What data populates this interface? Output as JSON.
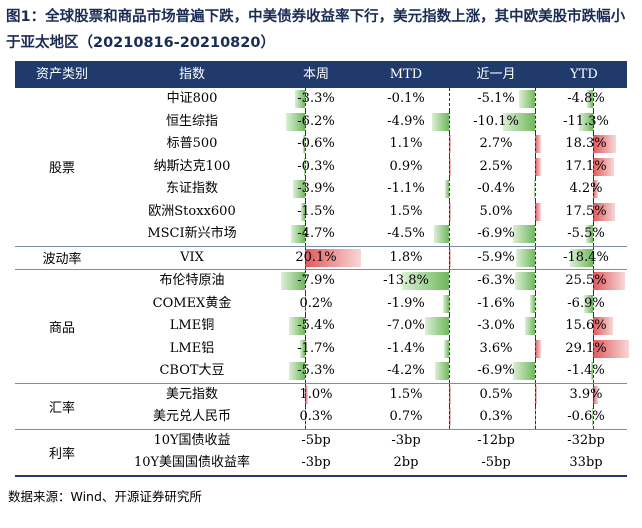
{
  "title": "图1：全球股票和商品市场普遍下跌，中美债券收益率下行，美元指数上涨，其中欧美股市跌幅小于亚太地区（20210816-20210820）",
  "headers": [
    "资产类别",
    "指数",
    "本周",
    "MTD",
    "近一月",
    "YTD"
  ],
  "groups": [
    {
      "label": "股票",
      "rows": [
        {
          "name": "中证800",
          "values": [
            -3.3,
            -0.1,
            -5.1,
            -4.8
          ]
        },
        {
          "name": "恒生综指",
          "values": [
            -6.2,
            -4.9,
            -10.1,
            -11.3
          ]
        },
        {
          "name": "标普500",
          "values": [
            -0.6,
            1.1,
            2.7,
            18.3
          ]
        },
        {
          "name": "纳斯达克100",
          "values": [
            -0.3,
            0.9,
            2.5,
            17.1
          ]
        },
        {
          "name": "东证指数",
          "values": [
            -3.9,
            -1.1,
            -0.4,
            4.2
          ]
        },
        {
          "name": "欧洲Stoxx600",
          "values": [
            -1.5,
            1.5,
            5.0,
            17.5
          ]
        },
        {
          "name": "MSCI新兴市场",
          "values": [
            -4.7,
            -4.5,
            -6.9,
            -5.5
          ]
        }
      ]
    },
    {
      "label": "波动率",
      "rows": [
        {
          "name": "VIX",
          "values": [
            20.1,
            1.8,
            -5.9,
            -18.4
          ]
        }
      ]
    },
    {
      "label": "商品",
      "rows": [
        {
          "name": "布伦特原油",
          "values": [
            -7.9,
            -13.8,
            -6.3,
            25.5
          ]
        },
        {
          "name": "COMEX黄金",
          "values": [
            0.2,
            -1.9,
            -1.6,
            -6.9
          ]
        },
        {
          "name": "LME铜",
          "values": [
            -5.4,
            -7.0,
            -3.0,
            15.6
          ]
        },
        {
          "name": "LME铝",
          "values": [
            -1.7,
            -1.4,
            3.6,
            29.1
          ]
        },
        {
          "name": "CBOT大豆",
          "values": [
            -5.3,
            -4.2,
            -6.9,
            -1.4
          ]
        }
      ]
    },
    {
      "label": "汇率",
      "rows": [
        {
          "name": "美元指数",
          "values": [
            1.0,
            1.5,
            0.5,
            3.9
          ]
        },
        {
          "name": "美元兑人民币",
          "values": [
            0.3,
            0.7,
            0.3,
            -0.6
          ]
        }
      ]
    },
    {
      "label": "利率",
      "plain": true,
      "rows": [
        {
          "name": "10Y国债收益",
          "texts": [
            "-5bp",
            "-3bp",
            "-12bp",
            "-32bp"
          ]
        },
        {
          "name": "10Y美国国债收益率",
          "texts": [
            "-3bp",
            "2bp",
            "-5bp",
            "33bp"
          ]
        }
      ]
    }
  ],
  "source": "数据来源：Wind、开源证券研究所"
}
